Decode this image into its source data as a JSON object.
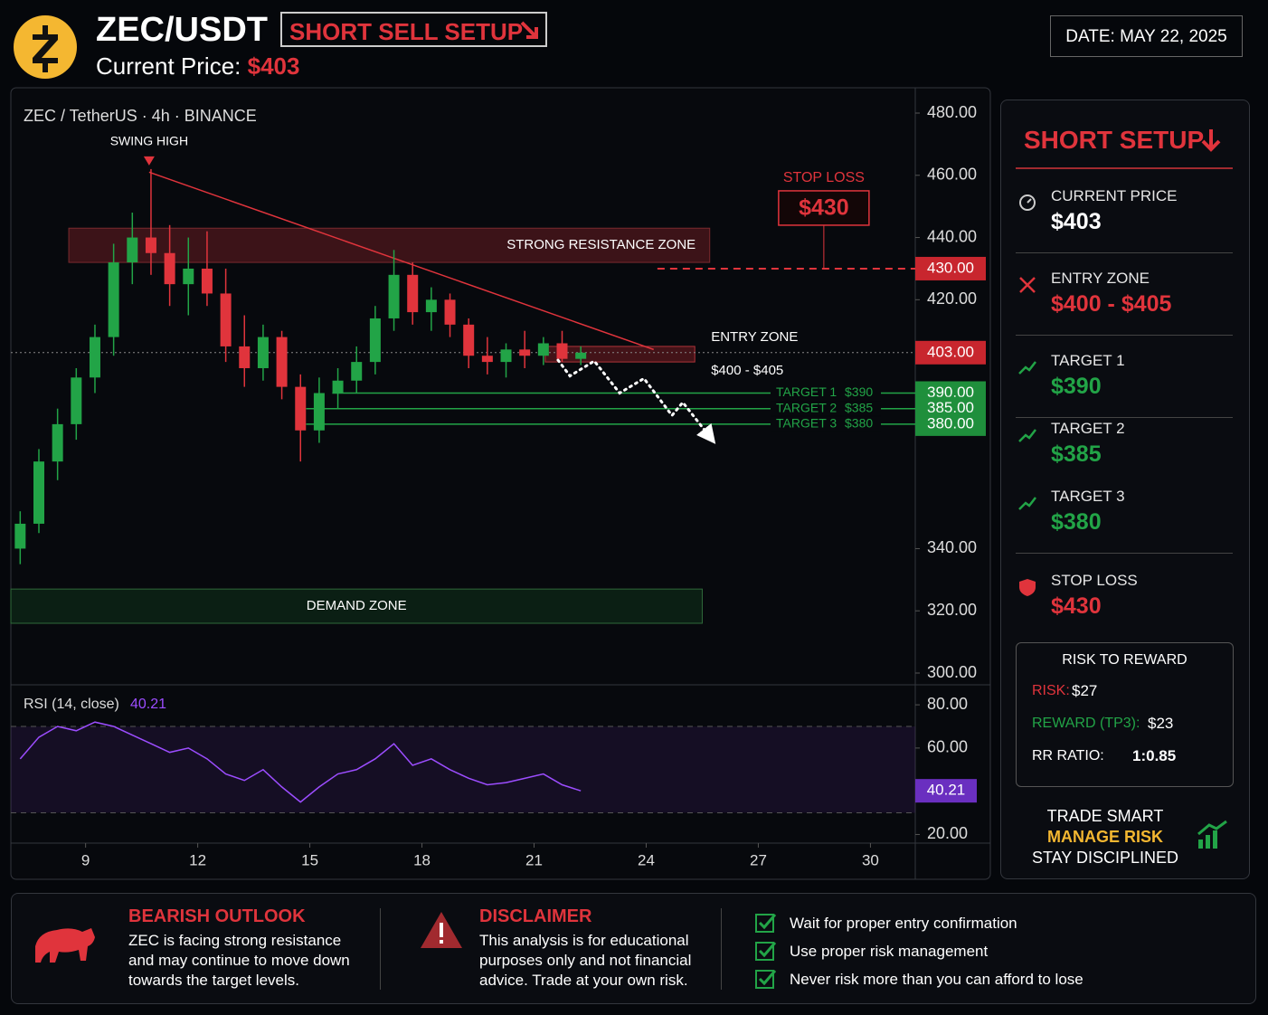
{
  "header": {
    "title": "ZEC/USDT",
    "badge": "SHORT SELL SETUP",
    "price_label": "Current Price:",
    "price": "$403",
    "date": "DATE: MAY 22, 2025"
  },
  "chart_data": {
    "type": "candlestick",
    "title": "ZEC / TetherUS · 4h · BINANCE",
    "x": [
      7.25,
      7.75,
      8.25,
      8.75,
      9.25,
      9.75,
      10.25,
      10.75,
      11.25,
      11.75,
      12.25,
      12.75,
      13.25,
      13.75,
      14.25,
      14.75,
      15.25,
      15.75,
      16.25,
      16.75,
      17.25,
      17.75,
      18.25,
      18.75,
      19.25,
      19.75,
      20.25,
      20.75,
      21.25,
      21.75,
      22.25
    ],
    "open": [
      340,
      348,
      368,
      380,
      395,
      408,
      432,
      440,
      435,
      425,
      430,
      422,
      405,
      398,
      408,
      392,
      378,
      390,
      394,
      400,
      414,
      428,
      416,
      420,
      412,
      402,
      400,
      404,
      402,
      406,
      401
    ],
    "high": [
      352,
      372,
      385,
      398,
      412,
      438,
      448,
      462,
      444,
      440,
      442,
      430,
      415,
      412,
      410,
      396,
      395,
      398,
      405,
      418,
      436,
      432,
      424,
      422,
      414,
      408,
      406,
      410,
      408,
      410,
      405
    ],
    "low": [
      335,
      345,
      362,
      375,
      390,
      402,
      425,
      428,
      418,
      415,
      418,
      400,
      392,
      394,
      388,
      368,
      374,
      385,
      390,
      396,
      410,
      412,
      410,
      408,
      398,
      396,
      395,
      398,
      399,
      400,
      399
    ],
    "close": [
      348,
      368,
      380,
      395,
      408,
      432,
      440,
      435,
      425,
      430,
      422,
      405,
      398,
      408,
      392,
      378,
      390,
      394,
      400,
      414,
      428,
      416,
      420,
      412,
      402,
      400,
      404,
      402,
      406,
      401,
      403
    ],
    "up_color": "#22a447",
    "down_color": "#e0343c",
    "xlim": [
      7,
      31.2
    ],
    "xticks": [
      9,
      12,
      15,
      18,
      21,
      24,
      27,
      30
    ],
    "ylim": [
      300,
      480
    ],
    "yticks": [
      {
        "value": 480,
        "label": "480.00"
      },
      {
        "value": 460,
        "label": "460.00"
      },
      {
        "value": 440,
        "label": "440.00"
      },
      {
        "value": 420,
        "label": "420.00"
      },
      {
        "value": 340,
        "label": "340.00"
      },
      {
        "value": 320,
        "label": "320.00"
      },
      {
        "value": 300,
        "label": "300.00"
      }
    ],
    "last_price": {
      "value": 403,
      "label": "403.00"
    },
    "swing_high": {
      "text": "SWING HIGH",
      "x": 10.7,
      "y": 462
    },
    "resistance_zone": {
      "text": "STRONG RESISTANCE ZONE",
      "x": [
        8.55,
        25.7
      ],
      "y": [
        432,
        443
      ]
    },
    "entry_zone": {
      "text": "ENTRY ZONE",
      "range": "$400 - $405",
      "x": [
        21.3,
        25.3
      ],
      "y": [
        400,
        405
      ]
    },
    "demand_zone": {
      "text": "DEMAND ZONE",
      "x": [
        7,
        25.5
      ],
      "y": [
        316,
        327
      ]
    },
    "stop_loss": {
      "title": "STOP LOSS",
      "text": "$430",
      "value": 430,
      "label": "430.00",
      "start": 24.3
    },
    "targets": [
      {
        "title": "TARGET 1",
        "text": "$390",
        "value": 390,
        "label": "390.00",
        "start": 15.6
      },
      {
        "title": "TARGET 2",
        "text": "$385",
        "value": 385,
        "label": "385.00",
        "start": 14.9
      },
      {
        "title": "TARGET 3",
        "text": "$380",
        "value": 380,
        "label": "380.00",
        "start": 14.9
      }
    ],
    "trendline": {
      "x": [
        10.7,
        24.2
      ],
      "y": [
        461,
        404
      ]
    },
    "projection": {
      "x": [
        21.64,
        21.96,
        22.61,
        23.29,
        23.94,
        24.69,
        24.98,
        25.7
      ],
      "y": [
        400.6,
        395.5,
        400.3,
        390,
        394.7,
        382.8,
        387,
        376
      ]
    },
    "rsi": {
      "title": "RSI (14, close)",
      "current": {
        "value": 40.21,
        "label": "40.21"
      },
      "values": [
        55,
        65,
        70,
        68,
        72,
        70,
        66,
        62,
        58,
        60,
        55,
        48,
        45,
        50,
        42,
        35,
        42,
        48,
        50,
        55,
        62,
        52,
        55,
        50,
        46,
        43,
        44,
        46,
        48,
        43,
        40.21
      ],
      "color": "#9c4dff",
      "ylim": [
        16,
        88
      ],
      "yticks": [
        {
          "value": 80,
          "label": "80.00"
        },
        {
          "value": 60,
          "label": "60.00"
        },
        {
          "value": 20,
          "label": "20.00"
        }
      ],
      "bands": [
        30,
        70
      ]
    }
  },
  "sidebar": {
    "title": "SHORT SETUP",
    "items": [
      {
        "label": "CURRENT PRICE",
        "value": "$403"
      },
      {
        "label": "ENTRY ZONE",
        "value": "$400 - $405"
      },
      {
        "label": "TARGET 1",
        "value": "$390"
      },
      {
        "label": "TARGET 2",
        "value": "$385"
      },
      {
        "label": "TARGET 3",
        "value": "$380"
      },
      {
        "label": "STOP LOSS",
        "value": "$430"
      }
    ],
    "rr": {
      "title": "RISK TO REWARD",
      "rows": [
        {
          "label": "RISK:",
          "value": "$27"
        },
        {
          "label": "REWARD (TP3):",
          "value": "$23"
        },
        {
          "label": "RR RATIO:",
          "value": "1:0.85"
        }
      ]
    },
    "motto": [
      "TRADE SMART",
      "MANAGE RISK",
      "STAY DISCIPLINED"
    ]
  },
  "footer": {
    "outlook": {
      "title": "BEARISH OUTLOOK",
      "text": "ZEC is facing strong resistance and may continue to move down towards the target levels."
    },
    "disclaimer": {
      "title": "DISCLAIMER",
      "text": "This analysis is for educational purposes only and not financial advice. Trade at your own risk."
    },
    "checklist": [
      "Wait for proper entry confirmation",
      "Use proper risk management",
      "Never risk more than you can afford to lose"
    ]
  }
}
